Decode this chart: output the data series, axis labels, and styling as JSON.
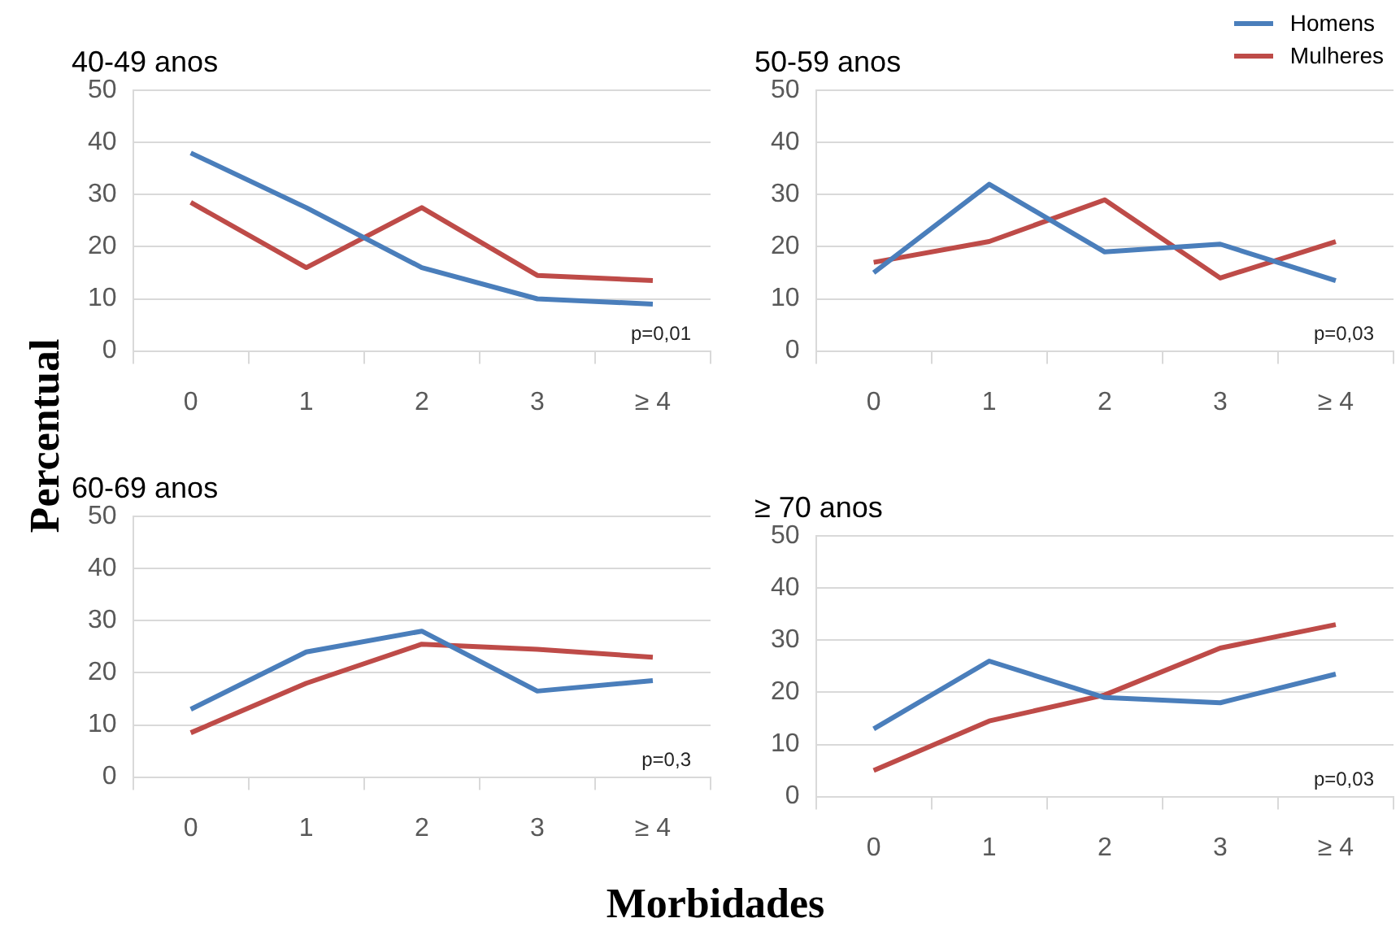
{
  "chart_data": [
    {
      "type": "line",
      "title": "40-49 anos",
      "ylabel": "Percentual",
      "categories": [
        "0",
        "1",
        "2",
        "3",
        "≥ 4"
      ],
      "ylim": [
        0,
        50
      ],
      "yticks": [
        0,
        10,
        20,
        30,
        40,
        50
      ],
      "grid": "y",
      "marker": "none",
      "annotations": [
        "p=0,01"
      ],
      "series": [
        {
          "color": "#4a7ebb",
          "values": [
            38,
            27.5,
            16,
            10,
            9
          ]
        },
        {
          "color": "#be4b48",
          "values": [
            28.5,
            16,
            27.5,
            14.5,
            13.5
          ]
        }
      ]
    },
    {
      "type": "line",
      "title": "50-59 anos",
      "categories": [
        "0",
        "1",
        "2",
        "3",
        "≥ 4"
      ],
      "ylim": [
        0,
        50
      ],
      "yticks": [
        0,
        10,
        20,
        30,
        40,
        50
      ],
      "grid": "y",
      "marker": "none",
      "legend": "top right",
      "annotations": [
        "p=0,03"
      ],
      "series": [
        {
          "name": "Homens",
          "color": "#4a7ebb",
          "values": [
            15,
            32,
            19,
            20.5,
            13.5
          ]
        },
        {
          "name": "Mulheres",
          "color": "#be4b48",
          "values": [
            17,
            21,
            29,
            14,
            21
          ]
        }
      ]
    },
    {
      "type": "line",
      "title": "60-69 anos",
      "xlabel": "Morbidades",
      "categories": [
        "0",
        "1",
        "2",
        "3",
        "≥ 4"
      ],
      "ylim": [
        0,
        50
      ],
      "yticks": [
        0,
        10,
        20,
        30,
        40,
        50
      ],
      "grid": "y",
      "marker": "none",
      "annotations": [
        "p=0,3"
      ],
      "series": [
        {
          "color": "#4a7ebb",
          "values": [
            13,
            24,
            28,
            16.5,
            18.5
          ]
        },
        {
          "color": "#be4b48",
          "values": [
            8.5,
            18,
            25.5,
            24.5,
            23
          ]
        }
      ]
    },
    {
      "type": "line",
      "title": "≥ 70 anos",
      "categories": [
        "0",
        "1",
        "2",
        "3",
        "≥ 4"
      ],
      "ylim": [
        0,
        50
      ],
      "yticks": [
        0,
        10,
        20,
        30,
        40,
        50
      ],
      "grid": "y",
      "marker": "none",
      "annotations": [
        "p=0,03"
      ],
      "series": [
        {
          "color": "#4a7ebb",
          "values": [
            13,
            26,
            19,
            18,
            23.5
          ]
        },
        {
          "color": "#be4b48",
          "values": [
            5,
            14.5,
            19.5,
            28.5,
            33
          ]
        }
      ]
    }
  ]
}
